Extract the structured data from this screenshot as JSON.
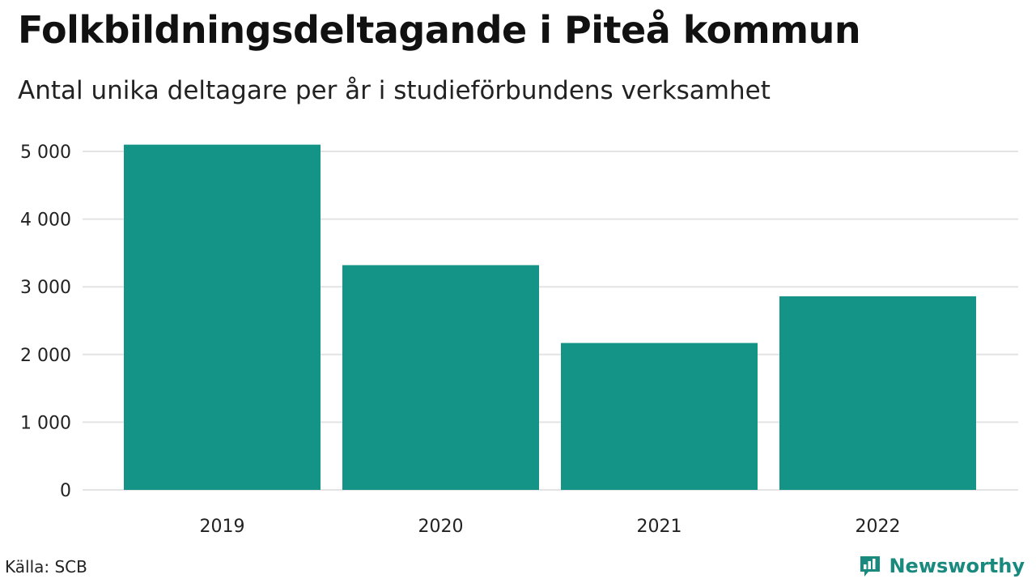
{
  "header": {
    "title": "Folkbildningsdeltagande i Piteå kommun",
    "subtitle": "Antal unika deltagare per år i studieförbundens verksamhet"
  },
  "footer": {
    "source": "Källa: SCB",
    "brand": "Newsworthy",
    "brand_icon": "bar-chart-bubble-icon"
  },
  "colors": {
    "bar": "#139487",
    "grid": "#e3e3e3",
    "brand": "#1a8a7f"
  },
  "chart_data": {
    "type": "bar",
    "title": "Folkbildningsdeltagande i Piteå kommun",
    "subtitle": "Antal unika deltagare per år i studieförbundens verksamhet",
    "xlabel": "",
    "ylabel": "",
    "categories": [
      "2019",
      "2020",
      "2021",
      "2022"
    ],
    "values": [
      5100,
      3320,
      2170,
      2860
    ],
    "ylim": [
      0,
      5000
    ],
    "yticks": [
      0,
      1000,
      2000,
      3000,
      4000,
      5000
    ],
    "ytick_labels": [
      "0",
      "1 000",
      "2 000",
      "3 000",
      "4 000",
      "5 000"
    ],
    "grid": true,
    "legend": "none"
  }
}
